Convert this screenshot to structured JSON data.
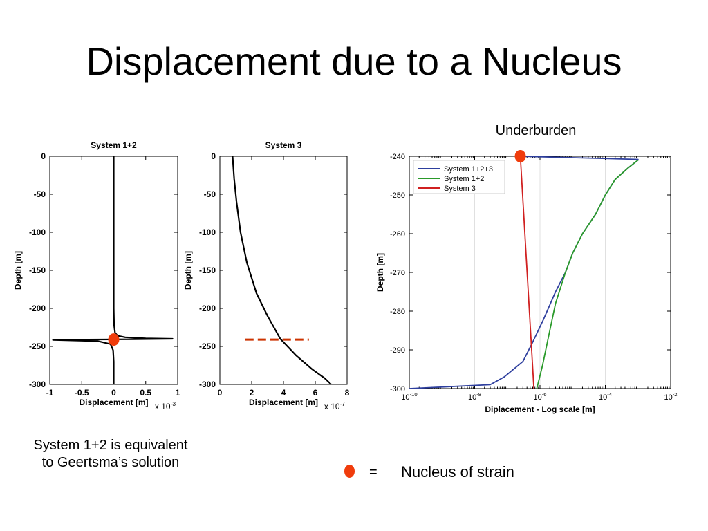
{
  "slide": {
    "title": "Displacement due to a Nucleus",
    "caption_line1": "System 1+2 is equivalent",
    "caption_line2": "to Geertsma’s solution",
    "underburden_label": "Underburden",
    "legend_equals": "=",
    "legend_text": "Nucleus of strain",
    "marker_color": "#f03c0c"
  },
  "chart_data": [
    {
      "type": "line",
      "title": "System 1+2",
      "xlabel": "Displacement [m]",
      "x_multiplier": "x 10-3",
      "ylabel": "Depth [m]",
      "xlim": [
        -1,
        1
      ],
      "ylim": [
        -300,
        0
      ],
      "xticks": [
        -1,
        -0.5,
        0,
        0.5,
        1
      ],
      "xtick_labels": [
        "-1",
        "-0.5",
        "0",
        "0.5",
        "1"
      ],
      "yticks": [
        0,
        -50,
        -100,
        -150,
        -200,
        -250,
        -300
      ],
      "grid": false,
      "series": [
        {
          "color": "#000000",
          "x": [
            0,
            0,
            0,
            0.005,
            0.02,
            0.06,
            0.18,
            0.5,
            0.92,
            0.3,
            -0.4,
            -0.95,
            -0.25,
            -0.05,
            -0.01,
            0,
            0
          ],
          "y": [
            0,
            -100,
            -200,
            -222,
            -232,
            -236,
            -238,
            -239.5,
            -240,
            -240.6,
            -241,
            -241.5,
            -243,
            -247,
            -255,
            -270,
            -300
          ]
        }
      ],
      "markers": [
        {
          "x": 0,
          "y": -241
        }
      ]
    },
    {
      "type": "line",
      "title": "System 3",
      "xlabel": "Displacement [m]",
      "x_multiplier": "x 10-7",
      "ylabel": "Depth [m]",
      "xlim": [
        0,
        8
      ],
      "ylim": [
        -300,
        0
      ],
      "xticks": [
        0,
        2,
        4,
        6,
        8
      ],
      "xtick_labels": [
        "0",
        "2",
        "4",
        "6",
        "8"
      ],
      "yticks": [
        0,
        -50,
        -100,
        -150,
        -200,
        -250,
        -300
      ],
      "grid": false,
      "series": [
        {
          "color": "#000000",
          "x": [
            0.8,
            0.9,
            1.05,
            1.3,
            1.7,
            2.3,
            3.0,
            3.8,
            4.8,
            5.8,
            6.6,
            7.0
          ],
          "y": [
            0,
            -30,
            -60,
            -100,
            -140,
            -180,
            -210,
            -240,
            -262,
            -280,
            -292,
            -300
          ]
        }
      ],
      "dashed_line": {
        "y": -241,
        "x_range": [
          1.6,
          5.6
        ],
        "color": "#cc3300"
      }
    },
    {
      "type": "line",
      "xlabel": "Diplacement - Log scale [m]",
      "ylabel": "Depth [m]",
      "x_scale": "log",
      "xlim": [
        1e-10,
        0.01
      ],
      "ylim": [
        -300,
        -240
      ],
      "xticks": [
        1e-10,
        1e-08,
        1e-06,
        0.0001,
        0.01
      ],
      "xtick_labels": [
        "10-10",
        "10-8",
        "10-6",
        "10-4",
        "10-2"
      ],
      "yticks": [
        -240,
        -250,
        -260,
        -270,
        -280,
        -290,
        -300
      ],
      "grid": true,
      "legend_position": "top-left",
      "series": [
        {
          "name": "System 1+2+3",
          "color": "#2e3f9e",
          "x": [
            2.5e-07,
            0.001,
            0.001,
            0.0005,
            0.0002,
            0.0001,
            5e-05,
            2e-05,
            1e-05,
            6e-06,
            3e-06,
            1.3e-06,
            6e-07,
            3e-07,
            8e-08,
            3e-08,
            1e-10
          ],
          "y": [
            -240,
            -240.8,
            -241,
            -243,
            -246,
            -250,
            -255,
            -260,
            -265,
            -270,
            -275,
            -282,
            -288,
            -293,
            -297,
            -299,
            -300
          ]
        },
        {
          "name": "System 1+2",
          "color": "#2a9a2a",
          "x": [
            0.001,
            0.0005,
            0.0002,
            0.0001,
            5e-05,
            2e-05,
            1e-05,
            6e-06,
            3e-06,
            2e-06,
            1.2e-06,
            8e-07
          ],
          "y": [
            -241,
            -243,
            -246,
            -250,
            -255,
            -260,
            -265,
            -270,
            -278,
            -285,
            -294,
            -300
          ]
        },
        {
          "name": "System 3",
          "color": "#d02020",
          "x": [
            2.5e-07,
            6.5e-07
          ],
          "y": [
            -240,
            -300
          ]
        }
      ],
      "markers": [
        {
          "x": 2.5e-07,
          "y": -240
        }
      ]
    }
  ]
}
